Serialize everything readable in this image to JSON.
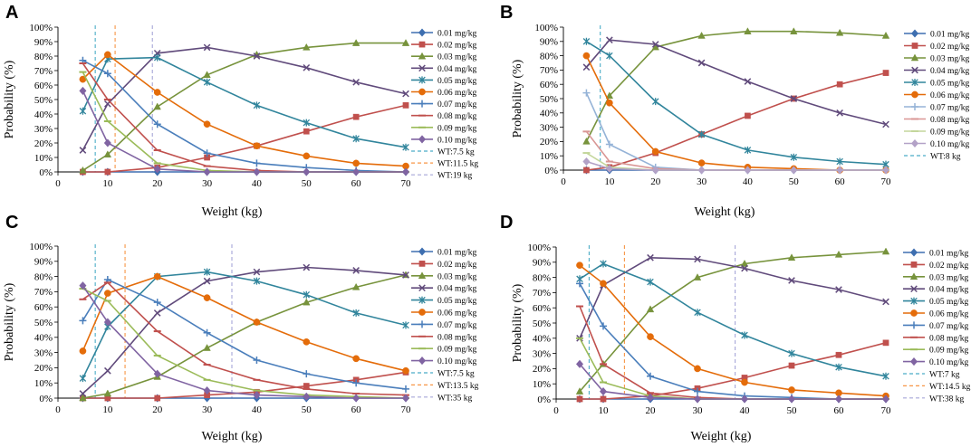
{
  "chart_data": [
    {
      "panel": "A",
      "type": "line",
      "xlabel": "Weight (kg)",
      "ylabel": "Probability (%)",
      "xlim": [
        0,
        70
      ],
      "ylim": [
        0,
        100
      ],
      "xticks": [
        "0",
        "10",
        "20",
        "30",
        "40",
        "50",
        "60",
        "70"
      ],
      "yticks": [
        "0%",
        "10%",
        "20%",
        "30%",
        "40%",
        "50%",
        "60%",
        "70%",
        "80%",
        "90%",
        "100%"
      ],
      "x": [
        5,
        10,
        20,
        30,
        40,
        50,
        60,
        70
      ],
      "series": [
        {
          "name": "0.01 mg/kg",
          "color": "#3e6fb0",
          "marker": "diamond",
          "values": [
            0,
            0,
            0,
            0,
            0,
            0,
            0,
            0
          ]
        },
        {
          "name": "0.02 mg/kg",
          "color": "#c0504d",
          "marker": "square",
          "values": [
            0,
            0,
            3,
            10,
            18,
            28,
            38,
            46
          ]
        },
        {
          "name": "0.03 mg/kg",
          "color": "#77933c",
          "marker": "triangle",
          "values": [
            1,
            12,
            45,
            67,
            81,
            86,
            89,
            89
          ]
        },
        {
          "name": "0.04 mg/kg",
          "color": "#604a7b",
          "marker": "x",
          "values": [
            15,
            47,
            82,
            86,
            80,
            72,
            62,
            54
          ]
        },
        {
          "name": "0.05 mg/kg",
          "color": "#31859c",
          "marker": "star",
          "values": [
            42,
            78,
            79,
            62,
            46,
            34,
            23,
            17
          ]
        },
        {
          "name": "0.06 mg/kg",
          "color": "#e46c0a",
          "marker": "circle",
          "values": [
            64,
            81,
            55,
            33,
            18,
            11,
            6,
            4
          ]
        },
        {
          "name": "0.07 mg/kg",
          "color": "#4a7ebb",
          "marker": "plus",
          "values": [
            77,
            68,
            33,
            13,
            6,
            3,
            1,
            0
          ]
        },
        {
          "name": "0.08 mg/kg",
          "color": "#c0504d",
          "marker": "dash",
          "values": [
            75,
            50,
            15,
            4,
            1,
            0,
            0,
            0
          ]
        },
        {
          "name": "0.09 mg/kg",
          "color": "#9bbb59",
          "marker": "dash",
          "values": [
            69,
            35,
            6,
            1,
            0,
            0,
            0,
            0
          ]
        },
        {
          "name": "0.10 mg/kg",
          "color": "#8064a2",
          "marker": "diamond",
          "values": [
            56,
            20,
            2,
            0,
            0,
            0,
            0,
            0
          ]
        }
      ],
      "vlines": [
        {
          "name": "WT:7.5 kg",
          "x": 7.5,
          "color": "#4bacc6"
        },
        {
          "name": "WT:11.5 kg",
          "x": 11.5,
          "color": "#f79646"
        },
        {
          "name": "WT:19 kg",
          "x": 19,
          "color": "#a6a6d8"
        }
      ]
    },
    {
      "panel": "B",
      "type": "line",
      "xlabel": "Weight (kg)",
      "ylabel": "Probability (%)",
      "xlim": [
        0,
        70
      ],
      "ylim": [
        0,
        100
      ],
      "xticks": [
        "0",
        "10",
        "20",
        "30",
        "40",
        "50",
        "60",
        "70"
      ],
      "yticks": [
        "0%",
        "10%",
        "20%",
        "30%",
        "40%",
        "50%",
        "60%",
        "70%",
        "80%",
        "90%",
        "100%"
      ],
      "x": [
        5,
        10,
        20,
        30,
        40,
        50,
        60,
        70
      ],
      "series": [
        {
          "name": "0.01 mg/kg",
          "color": "#3e6fb0",
          "marker": "diamond",
          "values": [
            0,
            0,
            0,
            0,
            0,
            0,
            0,
            0
          ]
        },
        {
          "name": "0.02 mg/kg",
          "color": "#c0504d",
          "marker": "square",
          "values": [
            0,
            2,
            12,
            25,
            38,
            50,
            60,
            68
          ]
        },
        {
          "name": "0.03 mg/kg",
          "color": "#77933c",
          "marker": "triangle",
          "values": [
            20,
            52,
            86,
            94,
            97,
            97,
            96,
            94
          ]
        },
        {
          "name": "0.04 mg/kg",
          "color": "#604a7b",
          "marker": "x",
          "values": [
            72,
            91,
            88,
            75,
            62,
            50,
            40,
            32
          ]
        },
        {
          "name": "0.05 mg/kg",
          "color": "#31859c",
          "marker": "star",
          "values": [
            90,
            80,
            48,
            25,
            14,
            9,
            6,
            4
          ]
        },
        {
          "name": "0.06 mg/kg",
          "color": "#e46c0a",
          "marker": "circle",
          "values": [
            80,
            47,
            13,
            5,
            2,
            1,
            0,
            0
          ]
        },
        {
          "name": "0.07 mg/kg",
          "color": "#95b3d7",
          "marker": "plus",
          "values": [
            54,
            18,
            2,
            0,
            0,
            0,
            0,
            0
          ]
        },
        {
          "name": "0.08 mg/kg",
          "color": "#d99694",
          "marker": "dash",
          "values": [
            27,
            6,
            1,
            0,
            0,
            0,
            0,
            0
          ]
        },
        {
          "name": "0.09 mg/kg",
          "color": "#c3d69b",
          "marker": "dash",
          "values": [
            12,
            2,
            0,
            0,
            0,
            0,
            0,
            0
          ]
        },
        {
          "name": "0.10 mg/kg",
          "color": "#b3a2c7",
          "marker": "diamond",
          "values": [
            6,
            1,
            0,
            0,
            0,
            0,
            0,
            0
          ]
        }
      ],
      "vlines": [
        {
          "name": "WT:8 kg",
          "x": 8,
          "color": "#4bacc6"
        }
      ]
    },
    {
      "panel": "C",
      "type": "line",
      "xlabel": "Weight (kg)",
      "ylabel": "Probability (%)",
      "xlim": [
        0,
        70
      ],
      "ylim": [
        0,
        100
      ],
      "xticks": [
        "0",
        "10",
        "20",
        "30",
        "40",
        "50",
        "60",
        "70"
      ],
      "yticks": [
        "0%",
        "10%",
        "20%",
        "30%",
        "40%",
        "50%",
        "60%",
        "70%",
        "80%",
        "90%",
        "100%"
      ],
      "x": [
        5,
        10,
        20,
        30,
        40,
        50,
        60,
        70
      ],
      "series": [
        {
          "name": "0.01 mg/kg",
          "color": "#3e6fb0",
          "marker": "diamond",
          "values": [
            0,
            0,
            0,
            0,
            0,
            0,
            0,
            0
          ]
        },
        {
          "name": "0.02 mg/kg",
          "color": "#c0504d",
          "marker": "square",
          "values": [
            0,
            0,
            0,
            2,
            4,
            8,
            12,
            17
          ]
        },
        {
          "name": "0.03 mg/kg",
          "color": "#77933c",
          "marker": "triangle",
          "values": [
            0,
            3,
            14,
            33,
            50,
            63,
            73,
            81
          ]
        },
        {
          "name": "0.04 mg/kg",
          "color": "#604a7b",
          "marker": "x",
          "values": [
            3,
            18,
            56,
            77,
            83,
            86,
            84,
            81
          ]
        },
        {
          "name": "0.05 mg/kg",
          "color": "#31859c",
          "marker": "star",
          "values": [
            13,
            47,
            80,
            83,
            77,
            68,
            56,
            48
          ]
        },
        {
          "name": "0.06 mg/kg",
          "color": "#e46c0a",
          "marker": "circle",
          "values": [
            31,
            69,
            80,
            66,
            50,
            37,
            26,
            18
          ]
        },
        {
          "name": "0.07 mg/kg",
          "color": "#4a7ebb",
          "marker": "plus",
          "values": [
            51,
            78,
            63,
            43,
            25,
            16,
            10,
            6
          ]
        },
        {
          "name": "0.08 mg/kg",
          "color": "#c0504d",
          "marker": "dash",
          "values": [
            65,
            76,
            44,
            22,
            12,
            6,
            3,
            2
          ]
        },
        {
          "name": "0.09 mg/kg",
          "color": "#9bbb59",
          "marker": "dash",
          "values": [
            72,
            64,
            28,
            12,
            5,
            2,
            1,
            0
          ]
        },
        {
          "name": "0.10 mg/kg",
          "color": "#8064a2",
          "marker": "diamond",
          "values": [
            74,
            50,
            16,
            5,
            2,
            1,
            0,
            0
          ]
        }
      ],
      "vlines": [
        {
          "name": "WT:7.5 kg",
          "x": 7.5,
          "color": "#4bacc6"
        },
        {
          "name": "WT:13.5 kg",
          "x": 13.5,
          "color": "#f79646"
        },
        {
          "name": "WT:35 kg",
          "x": 35,
          "color": "#a6a6d8"
        }
      ]
    },
    {
      "panel": "D",
      "type": "line",
      "xlabel": "Weight (kg)",
      "ylabel": "Probability (%)",
      "xlim": [
        0,
        70
      ],
      "ylim": [
        0,
        100
      ],
      "xticks": [
        "0",
        "10",
        "20",
        "30",
        "40",
        "50",
        "60",
        "70"
      ],
      "yticks": [
        "0%",
        "10%",
        "20%",
        "30%",
        "40%",
        "50%",
        "60%",
        "70%",
        "80%",
        "90%",
        "100%"
      ],
      "x": [
        5,
        10,
        20,
        30,
        40,
        50,
        60,
        70
      ],
      "series": [
        {
          "name": "0.01 mg/kg",
          "color": "#3e6fb0",
          "marker": "diamond",
          "values": [
            0,
            0,
            0,
            0,
            0,
            0,
            0,
            0
          ]
        },
        {
          "name": "0.02 mg/kg",
          "color": "#c0504d",
          "marker": "square",
          "values": [
            0,
            0,
            2,
            7,
            14,
            22,
            29,
            37
          ]
        },
        {
          "name": "0.03 mg/kg",
          "color": "#77933c",
          "marker": "triangle",
          "values": [
            5,
            23,
            59,
            80,
            89,
            93,
            95,
            97
          ]
        },
        {
          "name": "0.04 mg/kg",
          "color": "#604a7b",
          "marker": "x",
          "values": [
            40,
            75,
            93,
            92,
            86,
            78,
            72,
            64
          ]
        },
        {
          "name": "0.05 mg/kg",
          "color": "#31859c",
          "marker": "star",
          "values": [
            79,
            89,
            77,
            57,
            42,
            30,
            21,
            15
          ]
        },
        {
          "name": "0.06 mg/kg",
          "color": "#e46c0a",
          "marker": "circle",
          "values": [
            88,
            76,
            41,
            20,
            11,
            6,
            4,
            2
          ]
        },
        {
          "name": "0.07 mg/kg",
          "color": "#4a7ebb",
          "marker": "plus",
          "values": [
            76,
            48,
            15,
            5,
            2,
            1,
            0,
            0
          ]
        },
        {
          "name": "0.08 mg/kg",
          "color": "#c0504d",
          "marker": "dash",
          "values": [
            61,
            23,
            4,
            1,
            0,
            0,
            0,
            0
          ]
        },
        {
          "name": "0.09 mg/kg",
          "color": "#9bbb59",
          "marker": "dash",
          "values": [
            40,
            11,
            2,
            0,
            0,
            0,
            0,
            0
          ]
        },
        {
          "name": "0.10 mg/kg",
          "color": "#8064a2",
          "marker": "diamond",
          "values": [
            23,
            5,
            1,
            0,
            0,
            0,
            0,
            0
          ]
        }
      ],
      "vlines": [
        {
          "name": "WT:7 kg",
          "x": 7,
          "color": "#4bacc6"
        },
        {
          "name": "WT:14.5 kg",
          "x": 14.5,
          "color": "#f79646"
        },
        {
          "name": "WT:38 kg",
          "x": 38,
          "color": "#a6a6d8"
        }
      ]
    }
  ]
}
